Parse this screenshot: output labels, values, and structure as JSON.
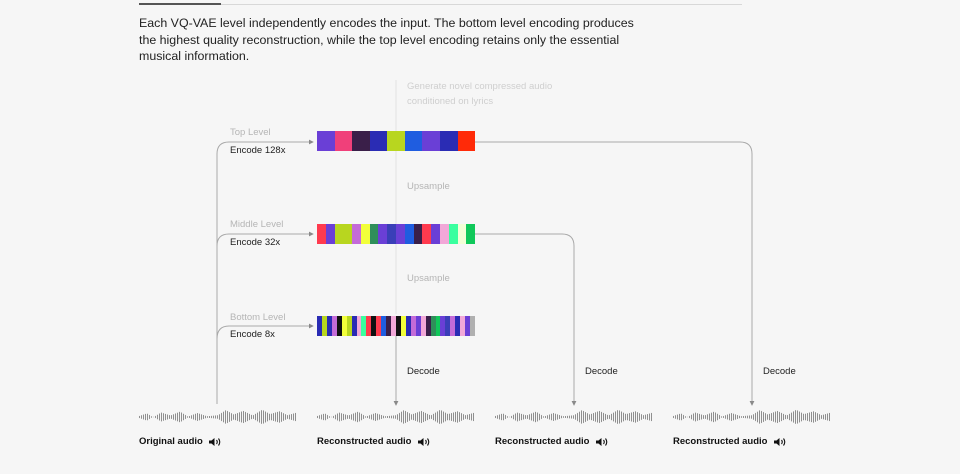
{
  "intro": "Each VQ-VAE level independently encodes the input. The bottom level encoding produces the highest quality reconstruction, while the top level encoding retains only the essential musical information.",
  "generate_note": "Generate novel compressed audio conditioned on lyrics",
  "upsample_label": "Upsample",
  "decode_label": "Decode",
  "levels": [
    {
      "name": "Top Level",
      "encode": "Encode 128x",
      "codes": [
        "#6a3fd6",
        "#f0407a",
        "#3a1f49",
        "#2a2cb4",
        "#b8d61f",
        "#1f5de0",
        "#6a3fd6",
        "#2a2cb4",
        "#ff2a08"
      ]
    },
    {
      "name": "Middle Level",
      "encode": "Encode 32x",
      "codes": [
        "#ff3a4e",
        "#6a3fd6",
        "#b8d61f",
        "#b8d61f",
        "#c46bd8",
        "#f2ff3a",
        "#2f8f5a",
        "#6a3fd6",
        "#3a3fb8",
        "#6a3fd6",
        "#1f5de0",
        "#3a1f49",
        "#ff3a4e",
        "#6a3fd6",
        "#f2a8d8",
        "#3aff9f",
        "#f2ffd6",
        "#10c85a"
      ]
    },
    {
      "name": "Bottom Level",
      "encode": "Encode 8x",
      "codes": [
        "#2a2cb4",
        "#b8d61f",
        "#2a2cb4",
        "#c46bd8",
        "#111111",
        "#f2ff3a",
        "#b8d61f",
        "#2a2cb4",
        "#f2a8d8",
        "#3aff9f",
        "#ff3a4e",
        "#111111",
        "#ff3a4e",
        "#1f5de0",
        "#3a1f49",
        "#f2a8d8",
        "#111111",
        "#f2ff3a",
        "#2a2cb4",
        "#c46bd8",
        "#6a3fd6",
        "#f2a8d8",
        "#3a1f49",
        "#2f8f5a",
        "#10c85a",
        "#6a3fd6",
        "#3a3fb8",
        "#c46bd8",
        "#2a2cb4",
        "#f2a8d8",
        "#6a3fd6",
        "#b0b0b0"
      ]
    }
  ],
  "audio": [
    {
      "label": "Original audio",
      "icon": "speaker-icon"
    },
    {
      "label": "Reconstructed audio",
      "icon": "speaker-icon"
    },
    {
      "label": "Reconstructed audio",
      "icon": "speaker-icon"
    },
    {
      "label": "Reconstructed audio",
      "icon": "speaker-icon"
    }
  ],
  "colors": {
    "background": "#f6f6f6",
    "line": "#a9a9a9",
    "text": "#222222",
    "muted": "#b5b5b5"
  }
}
